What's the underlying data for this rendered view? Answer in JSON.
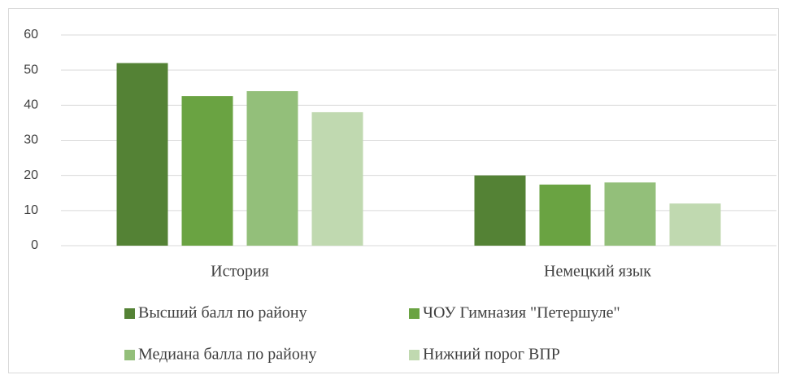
{
  "chart_data": {
    "type": "bar",
    "categories": [
      "История",
      "Немецкий язык"
    ],
    "series": [
      {
        "name": "Высший балл по району",
        "color": "#548235",
        "values": [
          52,
          20
        ]
      },
      {
        "name": "ЧОУ Гимназия \"Петершуле\"",
        "color": "#6aa342",
        "values": [
          42.6,
          17.4
        ]
      },
      {
        "name": "Медиана балла по району",
        "color": "#93bf7a",
        "values": [
          44,
          18
        ]
      },
      {
        "name": "Нижний порог ВПР",
        "color": "#c0d9b0",
        "values": [
          38,
          12
        ]
      }
    ],
    "ylim": [
      0,
      60
    ],
    "yticks": [
      0,
      10,
      20,
      30,
      40,
      50,
      60
    ],
    "grid": true,
    "legend": "bottom"
  }
}
